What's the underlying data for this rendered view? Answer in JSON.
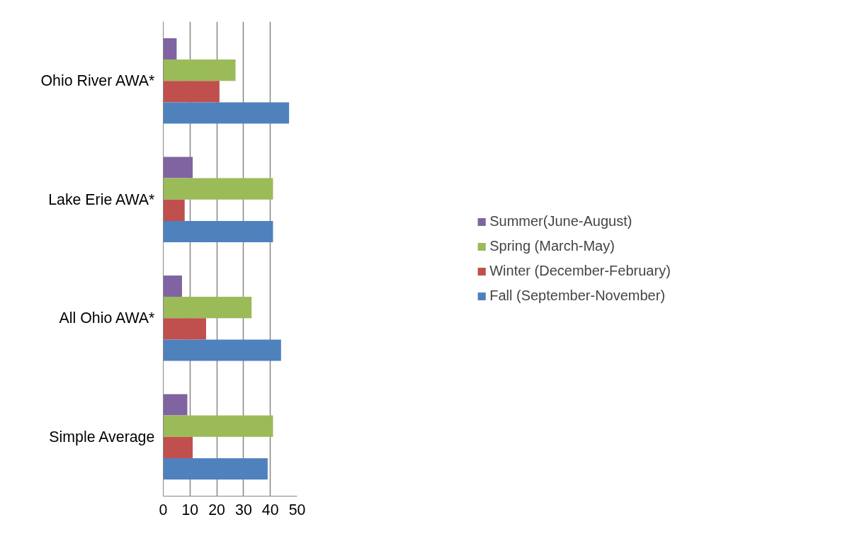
{
  "chart_data": {
    "type": "bar",
    "orientation": "horizontal",
    "categories": [
      "Ohio River AWA*",
      "Lake Erie AWA*",
      "All Ohio AWA*",
      "Simple Average"
    ],
    "series": [
      {
        "name": "Summer(June-August)",
        "color": "#8064a2",
        "values": [
          5,
          11,
          7,
          9
        ]
      },
      {
        "name": "Spring (March-May)",
        "color": "#9bbb59",
        "values": [
          27,
          41,
          33,
          41
        ]
      },
      {
        "name": "Winter (December-February)",
        "color": "#c0504d",
        "values": [
          21,
          8,
          16,
          11
        ]
      },
      {
        "name": "Fall (September-November)",
        "color": "#4f81bd",
        "values": [
          47,
          41,
          44,
          39
        ]
      }
    ],
    "xlim": [
      0,
      50
    ],
    "xticks": [
      0,
      10,
      20,
      30,
      40,
      50
    ],
    "grid": "x",
    "legend": "right"
  }
}
